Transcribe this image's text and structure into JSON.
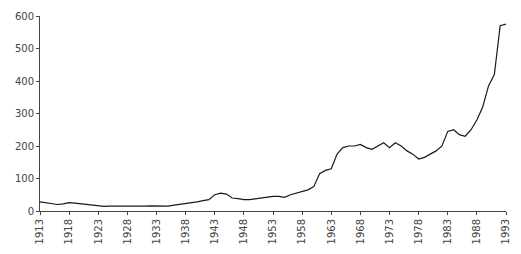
{
  "chart_data": {
    "type": "line",
    "x": [
      1913,
      1914,
      1915,
      1916,
      1917,
      1918,
      1919,
      1920,
      1921,
      1922,
      1923,
      1924,
      1925,
      1926,
      1927,
      1928,
      1929,
      1930,
      1931,
      1932,
      1933,
      1934,
      1935,
      1936,
      1937,
      1938,
      1939,
      1940,
      1941,
      1942,
      1943,
      1944,
      1945,
      1946,
      1947,
      1948,
      1949,
      1950,
      1951,
      1952,
      1953,
      1954,
      1955,
      1956,
      1957,
      1958,
      1959,
      1960,
      1961,
      1962,
      1963,
      1964,
      1965,
      1966,
      1967,
      1968,
      1969,
      1970,
      1971,
      1972,
      1973,
      1974,
      1975,
      1976,
      1977,
      1978,
      1979,
      1980,
      1981,
      1982,
      1983,
      1984,
      1985,
      1986,
      1987,
      1988,
      1989,
      1990,
      1991,
      1992,
      1993
    ],
    "values": [
      28,
      25,
      22,
      20,
      22,
      26,
      24,
      22,
      18,
      16,
      14,
      14,
      15,
      15,
      14,
      13,
      14,
      14,
      15,
      16,
      16,
      15,
      15,
      18,
      20,
      22,
      25,
      28,
      32,
      35,
      50,
      55,
      52,
      40,
      38,
      35,
      35,
      38,
      40,
      42,
      45,
      45,
      42,
      50,
      55,
      60,
      65,
      75,
      115,
      125,
      130,
      175,
      195,
      200,
      200,
      205,
      195,
      190,
      200,
      210,
      195,
      210,
      200,
      185,
      175,
      160,
      165,
      175,
      185,
      200,
      245,
      250,
      235,
      230,
      250,
      280,
      320,
      385,
      420,
      570,
      575
    ],
    "color": "#1a1a1a",
    "xlim": [
      1913,
      1993
    ],
    "ylim": [
      0,
      600
    ],
    "xticks": [
      1913,
      1918,
      1923,
      1928,
      1933,
      1938,
      1943,
      1948,
      1953,
      1958,
      1963,
      1968,
      1973,
      1978,
      1983,
      1988,
      1993
    ],
    "yticks": [
      0,
      100,
      200,
      300,
      400,
      500,
      600
    ],
    "grid": false
  }
}
